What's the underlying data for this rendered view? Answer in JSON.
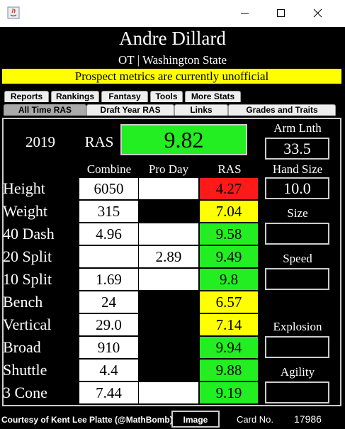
{
  "header": {
    "name": "Andre Dillard",
    "subtitle": "OT | Washington State",
    "notice": "Prospect metrics are currently unofficial"
  },
  "tabs": {
    "row1": [
      "Reports",
      "Rankings",
      "Fantasy",
      "Tools",
      "More Stats"
    ],
    "row2": [
      "All Time RAS",
      "Draft Year RAS",
      "Links",
      "Grades and Traits"
    ],
    "selected": 0
  },
  "card": {
    "year": "2019",
    "ras_label": "RAS",
    "ras": "9.82",
    "arm_label": "Arm Lnth",
    "arm": "33.5",
    "columns": [
      "Combine",
      "Pro Day",
      "RAS"
    ],
    "hand_label": "Hand Size",
    "hand": "10.0",
    "side_labels": {
      "size": "Size",
      "speed": "Speed",
      "explosion": "Explosion",
      "agility": "Agility"
    }
  },
  "rows": [
    {
      "label": "Height",
      "combine": "6050",
      "pro_day": null,
      "pro_day_cell": "#ffffff",
      "ras": "4.27",
      "ras_color": "#ff1a1a"
    },
    {
      "label": "Weight",
      "combine": "315",
      "pro_day": null,
      "pro_day_cell": "#000000",
      "ras": "7.04",
      "ras_color": "#ffff00"
    },
    {
      "label": "40 Dash",
      "combine": "4.96",
      "pro_day": null,
      "pro_day_cell": "#ffffff",
      "ras": "9.58",
      "ras_color": "#22ee22"
    },
    {
      "label": "20 Split",
      "combine": null,
      "pro_day": "2.89",
      "pro_day_cell": "#ffffff",
      "ras": "9.49",
      "ras_color": "#22ee22"
    },
    {
      "label": "10 Split",
      "combine": "1.69",
      "pro_day": null,
      "pro_day_cell": "#ffffff",
      "ras": "9.8",
      "ras_color": "#22ee22"
    },
    {
      "label": "Bench",
      "combine": "24",
      "pro_day": null,
      "pro_day_cell": "#000000",
      "ras": "6.57",
      "ras_color": "#ffff00"
    },
    {
      "label": "Vertical",
      "combine": "29.0",
      "pro_day": null,
      "pro_day_cell": "#000000",
      "ras": "7.14",
      "ras_color": "#ffff00"
    },
    {
      "label": "Broad",
      "combine": "910",
      "pro_day": null,
      "pro_day_cell": "#000000",
      "ras": "9.94",
      "ras_color": "#22ee22"
    },
    {
      "label": "Shuttle",
      "combine": "4.4",
      "pro_day": null,
      "pro_day_cell": "#000000",
      "ras": "9.88",
      "ras_color": "#22ee22"
    },
    {
      "label": "3 Cone",
      "combine": "7.44",
      "pro_day": null,
      "pro_day_cell": "#ffffff",
      "ras": "9.19",
      "ras_color": "#22ee22"
    }
  ],
  "footer": {
    "credit": "Courtesy of Kent Lee Platte (@MathBomb)",
    "button": "Image",
    "card_label": "Card No.",
    "card_no": "17986"
  }
}
